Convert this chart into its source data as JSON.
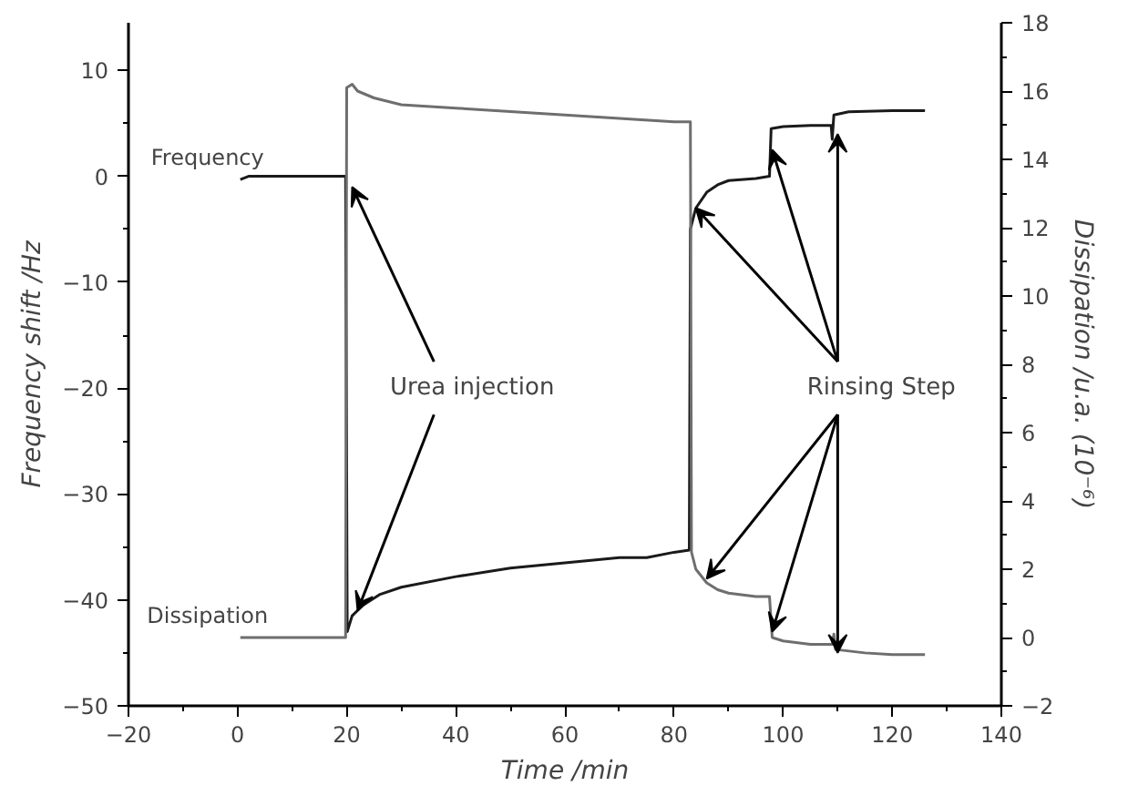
{
  "chart_data": {
    "type": "line",
    "xlabel": "Time /min",
    "ylabel": "Frequency shift /Hz",
    "y2label": "Dissipation /u.a. (10⁻⁶)",
    "xlim": [
      -20,
      140
    ],
    "xticks": [
      -20,
      0,
      20,
      40,
      60,
      80,
      100,
      120,
      140
    ],
    "ylim": [
      -50,
      14.5
    ],
    "yticks": [
      -50,
      -40,
      -30,
      -20,
      -10,
      0,
      10
    ],
    "y2lim": [
      -2,
      18
    ],
    "y2ticks": [
      -2,
      0,
      2,
      4,
      6,
      8,
      10,
      12,
      14,
      16,
      18
    ],
    "grid": false,
    "legend": false,
    "marker": "none",
    "line_style": "solid",
    "series": [
      {
        "name": "Frequency",
        "color": "#1a1a1a",
        "x": [
          0.5,
          2,
          19.8,
          20.1,
          21,
          23,
          26,
          30,
          40,
          50,
          60,
          70,
          75,
          80,
          82.8,
          83,
          84,
          86,
          88,
          90,
          95,
          97.5,
          97.8,
          100,
          105,
          108.8,
          109,
          109.3,
          112,
          120,
          126
        ],
        "values": [
          -0.3,
          0,
          0,
          -43,
          -41.5,
          -40.5,
          -39.5,
          -38.8,
          -37.8,
          -37,
          -36.5,
          -36,
          -36,
          -35.5,
          -35.3,
          -5,
          -3,
          -1.5,
          -0.8,
          -0.4,
          -0.2,
          0,
          4.5,
          4.7,
          4.8,
          4.8,
          3.5,
          5.8,
          6.1,
          6.2,
          6.2
        ]
      },
      {
        "name": "Dissipation",
        "color": "#6e6e6e",
        "axis": "y2",
        "x": [
          0.5,
          19.8,
          20,
          21,
          22,
          25,
          30,
          40,
          50,
          60,
          70,
          80,
          83,
          83.2,
          84,
          86,
          88,
          90,
          95,
          97.5,
          98,
          100,
          105,
          109,
          109.3,
          109.6,
          115,
          120,
          126
        ],
        "values": [
          0,
          0,
          16.1,
          16.2,
          16,
          15.8,
          15.6,
          15.5,
          15.4,
          15.3,
          15.2,
          15.1,
          15.1,
          2.5,
          2,
          1.6,
          1.4,
          1.3,
          1.2,
          1.2,
          0,
          -0.1,
          -0.2,
          -0.2,
          0.1,
          -0.35,
          -0.45,
          -0.5,
          -0.5
        ]
      }
    ],
    "annotations": [
      {
        "text": "Urea injection",
        "x": 21,
        "y": -1
      },
      {
        "text": "Rinsing Step",
        "x": 84,
        "y": -3
      }
    ]
  }
}
